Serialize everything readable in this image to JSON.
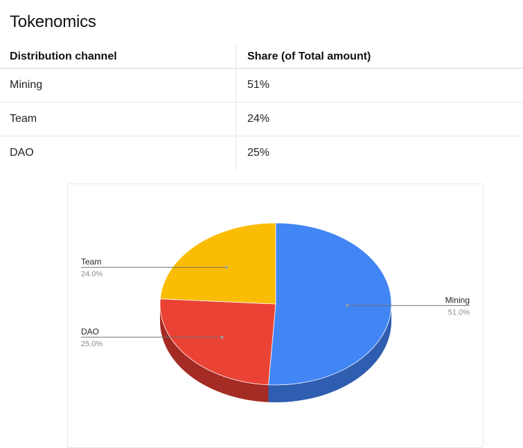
{
  "page": {
    "title": "Tokenomics"
  },
  "table": {
    "headers": [
      "Distribution channel",
      "Share (of Total amount)"
    ],
    "rows": [
      [
        "Mining",
        "51%"
      ],
      [
        "Team",
        "24%"
      ],
      [
        "DAO",
        "25%"
      ]
    ]
  },
  "chart_data": {
    "type": "pie",
    "style": "3d",
    "title": "",
    "legend": "labeled slices",
    "slices": [
      {
        "label": "Mining",
        "value": 51.0,
        "pct_label": "51.0%",
        "color": "#4285F4",
        "side": "#2f5daf"
      },
      {
        "label": "DAO",
        "value": 25.0,
        "pct_label": "25.0%",
        "color": "#EA4335",
        "side": "#a52c24"
      },
      {
        "label": "Team",
        "value": 24.0,
        "pct_label": "24.0%",
        "color": "#FBBC04",
        "side": "#b58700"
      }
    ]
  }
}
